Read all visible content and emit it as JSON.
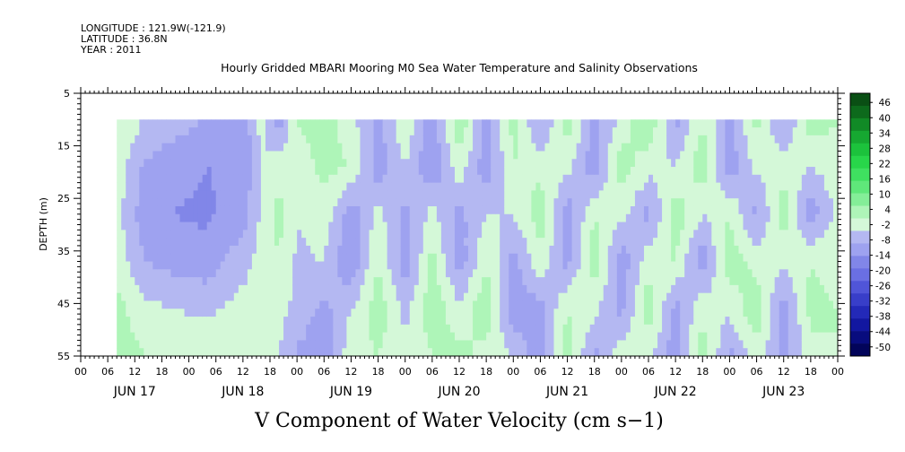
{
  "header": {
    "longitude": "LONGITUDE : 121.9W(-121.9)",
    "latitude": "LATITUDE : 36.8N",
    "year": "YEAR : 2011"
  },
  "chart_data": {
    "type": "heatmap",
    "title": "Hourly Gridded MBARI Mooring M0 Sea Water Temperature and Salinity Observations",
    "variable_label": "V Component of Water Velocity (cm s−1)",
    "ylabel": "DEPTH (m)",
    "ylim": [
      55,
      5
    ],
    "y_ticks": [
      "5",
      "15",
      "25",
      "35",
      "45",
      "55"
    ],
    "x_hour_tick_labels": [
      "00",
      "06",
      "12",
      "18",
      "00",
      "06",
      "12",
      "18",
      "00",
      "06",
      "12",
      "18",
      "00",
      "06",
      "12",
      "18",
      "00",
      "06",
      "12",
      "18",
      "00",
      "06",
      "12",
      "18",
      "00",
      "06",
      "12",
      "18",
      "00"
    ],
    "x_day_labels": [
      "JUN 17",
      "JUN 18",
      "JUN 19",
      "JUN 20",
      "JUN 21",
      "JUN 22",
      "JUN 23"
    ],
    "x_range_hours": [
      0,
      168
    ],
    "data_extent": {
      "start_hour": 8,
      "end_hour": 168,
      "min_depth": 10,
      "max_depth": 55
    },
    "colorbar_labels": [
      "46",
      "40",
      "34",
      "28",
      "22",
      "16",
      "10",
      "4",
      "-2",
      "-8",
      "-14",
      "-20",
      "-26",
      "-32",
      "-38",
      "-44",
      "-50"
    ],
    "colorbar_colors": [
      "#0a4f14",
      "#0d6a1c",
      "#118a26",
      "#16a831",
      "#1cc23c",
      "#28d64a",
      "#3fe060",
      "#5fe77a",
      "#84ee98",
      "#aef5b8",
      "#d4f8d8",
      "#b4b8f2",
      "#9ea2f0",
      "#8186e8",
      "#6a6fe3",
      "#5055d8",
      "#383ec9",
      "#2329b8",
      "#1217a0",
      "#080c7e",
      "#02045a"
    ],
    "value_bands": [
      -50,
      -44,
      -38,
      -32,
      -26,
      -20,
      -14,
      -8,
      -2,
      4,
      10,
      16,
      22,
      28,
      34,
      40,
      46
    ],
    "approx_column_values": [
      {
        "hour": 8,
        "depth_profile": [
          10,
          8,
          6,
          8,
          12,
          14
        ]
      },
      {
        "hour": 14,
        "depth_profile": [
          4,
          -3,
          -5,
          -2,
          6,
          10
        ]
      },
      {
        "hour": 20,
        "depth_profile": [
          2,
          -6,
          -8,
          -4,
          4,
          9
        ]
      },
      {
        "hour": 28,
        "depth_profile": [
          -3,
          -8,
          -9,
          -6,
          3,
          8
        ]
      },
      {
        "hour": 36,
        "depth_profile": [
          -6,
          -7,
          -5,
          2,
          6,
          8
        ]
      },
      {
        "hour": 40,
        "depth_profile": [
          6,
          4,
          5,
          6,
          5,
          5
        ]
      },
      {
        "hour": 44,
        "depth_profile": [
          -6,
          8,
          12,
          10,
          6,
          4
        ]
      },
      {
        "hour": 48,
        "depth_profile": [
          10,
          6,
          4,
          3,
          2,
          -3
        ]
      },
      {
        "hour": 54,
        "depth_profile": [
          14,
          12,
          8,
          4,
          -4,
          -6
        ]
      },
      {
        "hour": 60,
        "depth_profile": [
          6,
          10,
          -6,
          -8,
          4,
          8
        ]
      },
      {
        "hour": 66,
        "depth_profile": [
          -4,
          -6,
          6,
          10,
          14,
          10
        ]
      },
      {
        "hour": 72,
        "depth_profile": [
          10,
          4,
          -4,
          -6,
          2,
          6
        ]
      },
      {
        "hour": 78,
        "depth_profile": [
          -6,
          -8,
          6,
          12,
          14,
          10
        ]
      },
      {
        "hour": 84,
        "depth_profile": [
          16,
          8,
          -4,
          -6,
          6,
          12
        ]
      },
      {
        "hour": 90,
        "depth_profile": [
          -4,
          -6,
          4,
          10,
          14,
          8
        ]
      },
      {
        "hour": 96,
        "depth_profile": [
          12,
          10,
          4,
          -4,
          -6,
          4
        ]
      },
      {
        "hour": 102,
        "depth_profile": [
          -4,
          8,
          14,
          8,
          -4,
          -6
        ]
      },
      {
        "hour": 108,
        "depth_profile": [
          14,
          6,
          -6,
          -4,
          10,
          14
        ]
      },
      {
        "hour": 114,
        "depth_profile": [
          -4,
          -6,
          10,
          14,
          6,
          -4
        ]
      },
      {
        "hour": 120,
        "depth_profile": [
          6,
          14,
          6,
          -6,
          -4,
          8
        ]
      },
      {
        "hour": 126,
        "depth_profile": [
          16,
          6,
          -4,
          8,
          14,
          6
        ]
      },
      {
        "hour": 132,
        "depth_profile": [
          -4,
          4,
          14,
          10,
          -4,
          -6
        ]
      },
      {
        "hour": 138,
        "depth_profile": [
          10,
          14,
          4,
          -6,
          8,
          14
        ]
      },
      {
        "hour": 144,
        "depth_profile": [
          -4,
          -6,
          10,
          14,
          6,
          -4
        ]
      },
      {
        "hour": 150,
        "depth_profile": [
          12,
          6,
          -4,
          8,
          14,
          8
        ]
      },
      {
        "hour": 156,
        "depth_profile": [
          -4,
          8,
          14,
          6,
          -6,
          -4
        ]
      },
      {
        "hour": 162,
        "depth_profile": [
          14,
          4,
          -6,
          10,
          12,
          8
        ]
      },
      {
        "hour": 168,
        "depth_profile": [
          10,
          8,
          6,
          8,
          10,
          10
        ]
      }
    ],
    "profile_depths": [
      10,
      19,
      28,
      37,
      46,
      55
    ]
  }
}
